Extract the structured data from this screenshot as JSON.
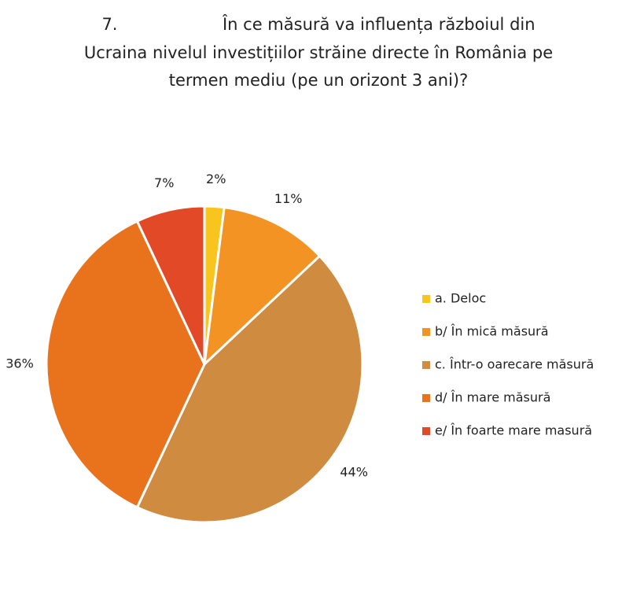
{
  "chart_data": {
    "type": "pie",
    "title": [
      "7.                    În ce măsură va influența războiul din",
      "Ucraina nivelul investițiilor străine directe în România pe",
      "termen mediu (pe un orizont 3 ani)?"
    ],
    "categories": [
      "a. Deloc",
      "b/ În mică măsură",
      "c. Într-o oarecare măsură",
      "d/ În mare măsură",
      "e/ În foarte mare masură"
    ],
    "values": [
      2,
      11,
      44,
      36,
      7
    ],
    "value_labels": [
      "2%",
      "11%",
      "44%",
      "36%",
      "7%"
    ],
    "colors": [
      "#f7c51e",
      "#f39323",
      "#cf8c40",
      "#e9731c",
      "#e24a27"
    ],
    "legend": "right"
  }
}
